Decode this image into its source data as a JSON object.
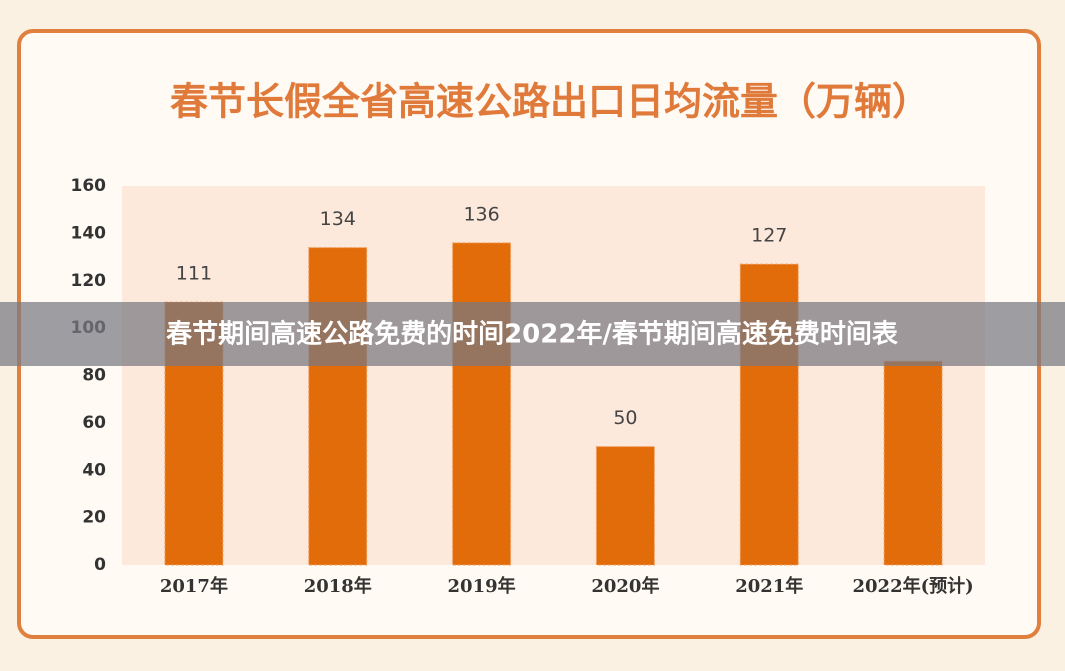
{
  "chart_data": {
    "type": "bar",
    "title": "春节长假全省高速公路出口日均流量（万辆）",
    "categories": [
      "2017年",
      "2018年",
      "2019年",
      "2020年",
      "2021年",
      "2022年(预计)"
    ],
    "values": [
      111,
      134,
      136,
      50,
      127,
      86
    ],
    "value_labels": [
      "111",
      "134",
      "136",
      "50",
      "127",
      null
    ],
    "color": "#e36c0a",
    "ylim": [
      0,
      160
    ],
    "yticks": [
      0,
      20,
      40,
      60,
      80,
      100,
      120,
      140,
      160
    ],
    "grid": false
  },
  "banner": "春节期间高速公路免费的时间2022年/春节期间高速免费时间表"
}
